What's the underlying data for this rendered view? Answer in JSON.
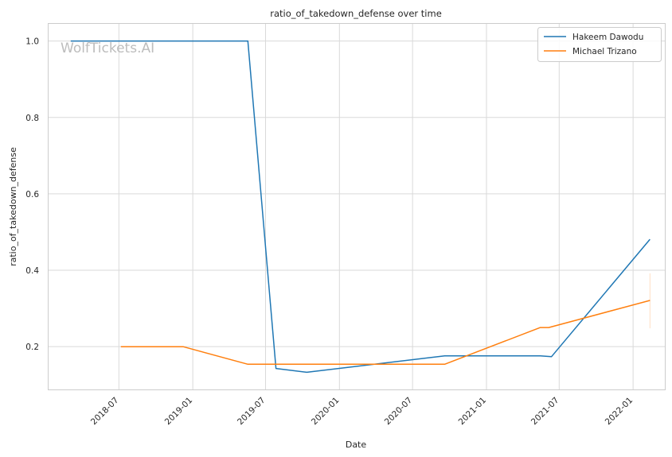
{
  "chart_data": {
    "type": "line",
    "title": "ratio_of_takedown_defense over time",
    "xlabel": "Date",
    "ylabel": "ratio_of_takedown_defense",
    "watermark": "WolfTickets.AI",
    "x_ticks": [
      "2018-07",
      "2019-01",
      "2019-07",
      "2020-01",
      "2020-07",
      "2021-01",
      "2021-07",
      "2022-01"
    ],
    "y_ticks": [
      0.2,
      0.4,
      0.6,
      0.8,
      1.0
    ],
    "y_tick_labels": [
      "0.2",
      "0.4",
      "0.6",
      "0.8",
      "1.0"
    ],
    "xlim": [
      "2018-01-07",
      "2022-03-21"
    ],
    "ylim": [
      0.088,
      1.045
    ],
    "grid": true,
    "legend_position": "top-right",
    "series": [
      {
        "name": "Hakeem Dawodu",
        "color": "#1f77b4",
        "points": [
          [
            "2018-03-03",
            1.0
          ],
          [
            "2019-05-18",
            1.0
          ],
          [
            "2019-07-27",
            0.143
          ],
          [
            "2019-10-12",
            0.133
          ],
          [
            "2020-09-19",
            0.176
          ],
          [
            "2021-05-15",
            0.176
          ],
          [
            "2021-06-12",
            0.174
          ],
          [
            "2022-02-12",
            0.481
          ]
        ]
      },
      {
        "name": "Michael Trizano",
        "color": "#ff7f0e",
        "points": [
          [
            "2018-07-06",
            0.2
          ],
          [
            "2018-12-08",
            0.2
          ],
          [
            "2019-05-18",
            0.154
          ],
          [
            "2020-09-19",
            0.154
          ],
          [
            "2021-05-15",
            0.25
          ],
          [
            "2021-06-05",
            0.25
          ],
          [
            "2022-02-12",
            0.321
          ]
        ],
        "error_band": {
          "x": "2022-02-12",
          "low": 0.248,
          "high": 0.392
        }
      }
    ]
  }
}
